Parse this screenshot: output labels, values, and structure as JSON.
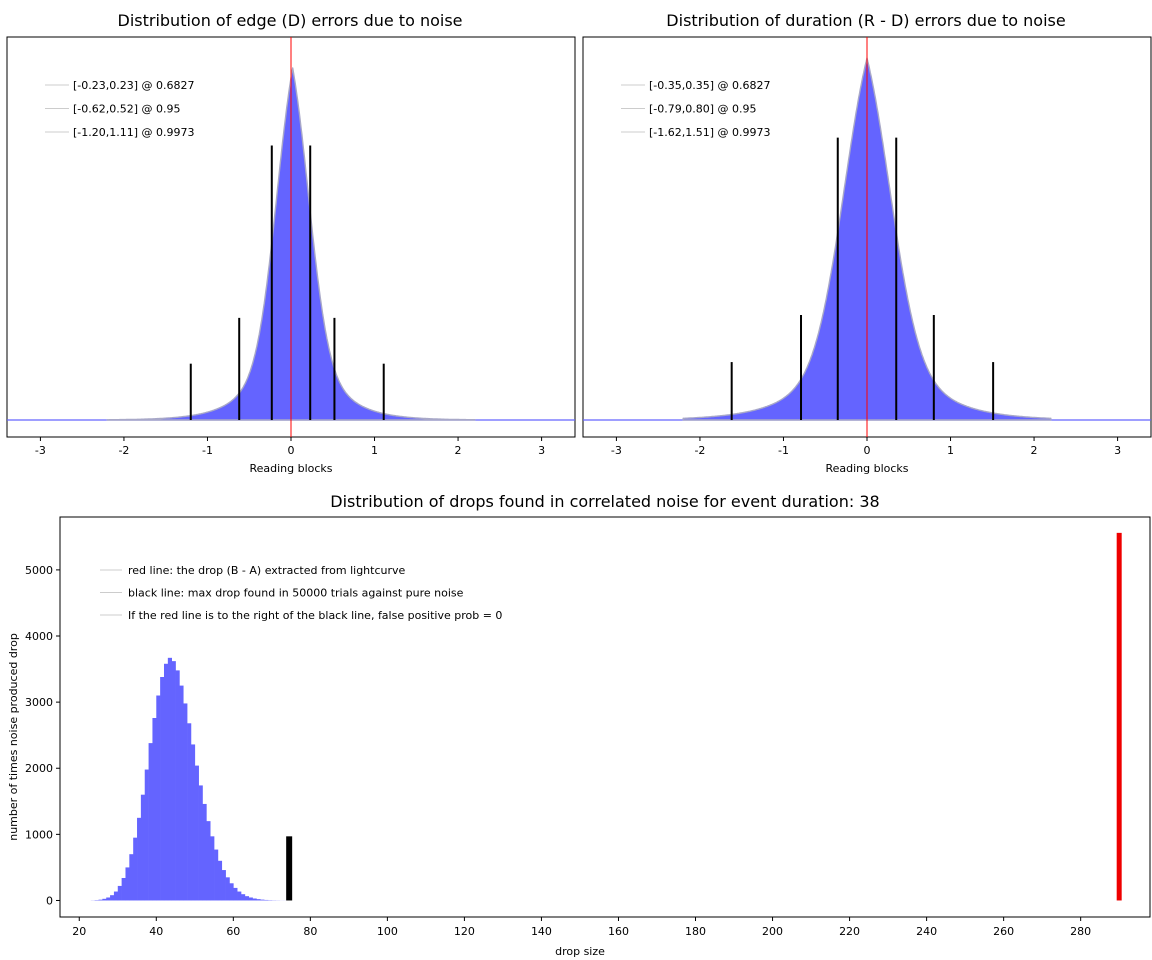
{
  "chart_data": [
    {
      "type": "bar",
      "title": "Distribution of edge (D) errors due to noise",
      "xlabel": "Reading blocks",
      "ylabel": "",
      "xlim": [
        -3.4,
        3.4
      ],
      "xticks": [
        -3,
        -2,
        -1,
        0,
        1,
        2,
        3
      ],
      "series_color": "#6464ff",
      "center_line": {
        "x": 0,
        "color": "#ff0000"
      },
      "legend_position": "top-left",
      "legend": [
        "[-0.23,0.23] @ 0.6827",
        "[-0.62,0.52] @ 0.95",
        "[-1.20,1.11] @ 0.9973"
      ],
      "confidence_bounds": [
        {
          "lo": -0.23,
          "hi": 0.23,
          "level": 0.6827,
          "marker_height": 0.78
        },
        {
          "lo": -0.62,
          "hi": 0.52,
          "level": 0.95,
          "marker_height": 0.29
        },
        {
          "lo": -1.2,
          "hi": 1.11,
          "level": 0.9973,
          "marker_height": 0.16
        }
      ],
      "distribution": {
        "sigma": 0.22,
        "tail": 0.34,
        "mode": 0.02
      }
    },
    {
      "type": "bar",
      "title": "Distribution of duration (R - D) errors due to noise",
      "xlabel": "Reading blocks",
      "ylabel": "",
      "xlim": [
        -3.4,
        3.4
      ],
      "xticks": [
        -3,
        -2,
        -1,
        0,
        1,
        2,
        3
      ],
      "series_color": "#6464ff",
      "center_line": {
        "x": 0,
        "color": "#ff0000"
      },
      "legend_position": "top-left",
      "legend": [
        "[-0.35,0.35] @ 0.6827",
        "[-0.79,0.80] @ 0.95",
        "[-1.62,1.51] @ 0.9973"
      ],
      "confidence_bounds": [
        {
          "lo": -0.35,
          "hi": 0.35,
          "level": 0.6827,
          "marker_height": 0.78
        },
        {
          "lo": -0.79,
          "hi": 0.8,
          "level": 0.95,
          "marker_height": 0.29
        },
        {
          "lo": -1.62,
          "hi": 1.51,
          "level": 0.9973,
          "marker_height": 0.16
        }
      ],
      "distribution": {
        "sigma": 0.32,
        "tail": 0.48,
        "mode": 0.0
      }
    },
    {
      "type": "bar",
      "title": "Distribution of drops found in correlated noise for event duration: 38",
      "xlabel": "drop size",
      "ylabel": "number of times noise produced drop",
      "xlim": [
        15,
        298
      ],
      "ylim": [
        -250,
        5800
      ],
      "xticks": [
        20,
        40,
        60,
        80,
        100,
        120,
        140,
        160,
        180,
        200,
        220,
        240,
        260,
        280
      ],
      "yticks": [
        0,
        1000,
        2000,
        3000,
        4000,
        5000
      ],
      "series_color": "#6464ff",
      "legend_position": "top-left",
      "legend": [
        "red line: the drop (B - A) extracted from lightcurve",
        "black line: max drop found in 50000 trials against pure noise",
        "If the red line is to the right of the black line, false positive prob = 0"
      ],
      "bin_start": 23,
      "bin_width": 1,
      "values": [
        2,
        6,
        12,
        25,
        45,
        80,
        135,
        220,
        340,
        500,
        700,
        950,
        1250,
        1600,
        1980,
        2380,
        2760,
        3100,
        3380,
        3580,
        3670,
        3620,
        3480,
        3250,
        2980,
        2680,
        2360,
        2040,
        1740,
        1460,
        1200,
        970,
        770,
        600,
        460,
        350,
        260,
        190,
        135,
        95,
        65,
        45,
        30,
        20,
        13,
        8,
        5,
        3,
        2,
        1,
        1
      ],
      "black_line": {
        "x": 74.5,
        "height": 970,
        "color": "#000000"
      },
      "red_line": {
        "x": 290,
        "height": 5560,
        "color": "#ee0000"
      }
    }
  ]
}
